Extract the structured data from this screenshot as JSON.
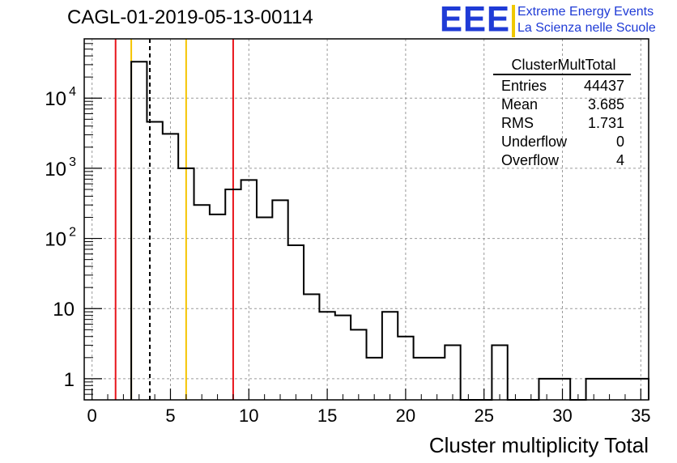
{
  "title": "CAGL-01-2019-05-13-00114",
  "logo": {
    "mark": "EEE",
    "line1": "Extreme Energy Events",
    "line2": "La Scienza nelle Scuole",
    "color": "#1f3bd6",
    "accent": "#f0c800"
  },
  "stats_box": {
    "title": "ClusterMultTotal",
    "rows": [
      {
        "label": "Entries",
        "value": "44437"
      },
      {
        "label": "Mean",
        "value": "3.685"
      },
      {
        "label": "RMS",
        "value": "1.731"
      },
      {
        "label": "Underflow",
        "value": "0"
      },
      {
        "label": "Overflow",
        "value": "4"
      }
    ]
  },
  "chart_data": {
    "type": "histogram",
    "xlabel": "Cluster multiplicity Total",
    "ylabel": "",
    "xlim": [
      -0.5,
      35.5
    ],
    "ylim": [
      0.5,
      70000
    ],
    "y_scale": "log",
    "grid": true,
    "bin_width": 1,
    "x_ticks": [
      0,
      5,
      10,
      15,
      20,
      25,
      30,
      35
    ],
    "y_ticks": [
      {
        "value": 1,
        "label": "1"
      },
      {
        "value": 10,
        "label": "10"
      },
      {
        "value": 100,
        "label": "10",
        "sup": "2"
      },
      {
        "value": 1000,
        "label": "10",
        "sup": "3"
      },
      {
        "value": 10000,
        "label": "10",
        "sup": "4"
      }
    ],
    "bins": [
      {
        "x": 3,
        "count": 33000
      },
      {
        "x": 4,
        "count": 4600
      },
      {
        "x": 5,
        "count": 3100
      },
      {
        "x": 6,
        "count": 1000
      },
      {
        "x": 7,
        "count": 300
      },
      {
        "x": 8,
        "count": 220
      },
      {
        "x": 9,
        "count": 500
      },
      {
        "x": 10,
        "count": 680
      },
      {
        "x": 11,
        "count": 200
      },
      {
        "x": 12,
        "count": 350
      },
      {
        "x": 13,
        "count": 80
      },
      {
        "x": 14,
        "count": 16
      },
      {
        "x": 15,
        "count": 9
      },
      {
        "x": 16,
        "count": 8
      },
      {
        "x": 17,
        "count": 5
      },
      {
        "x": 18,
        "count": 2
      },
      {
        "x": 19,
        "count": 9
      },
      {
        "x": 20,
        "count": 4
      },
      {
        "x": 21,
        "count": 2
      },
      {
        "x": 22,
        "count": 2
      },
      {
        "x": 23,
        "count": 3
      },
      {
        "x": 24,
        "count": 0
      },
      {
        "x": 25,
        "count": 0
      },
      {
        "x": 26,
        "count": 3
      },
      {
        "x": 27,
        "count": 0
      },
      {
        "x": 28,
        "count": 0
      },
      {
        "x": 29,
        "count": 1
      },
      {
        "x": 30,
        "count": 1
      },
      {
        "x": 31,
        "count": 0
      },
      {
        "x": 32,
        "count": 1
      },
      {
        "x": 33,
        "count": 1
      },
      {
        "x": 34,
        "count": 1
      },
      {
        "x": 35,
        "count": 1
      }
    ],
    "reference_lines": [
      {
        "x": 1.5,
        "color": "#e8141b",
        "style": "solid"
      },
      {
        "x": 2.5,
        "color": "#f5c400",
        "style": "solid"
      },
      {
        "x": 3.685,
        "color": "#000000",
        "style": "dashed"
      },
      {
        "x": 6.0,
        "color": "#f5c400",
        "style": "solid"
      },
      {
        "x": 9.0,
        "color": "#e8141b",
        "style": "solid"
      }
    ]
  }
}
